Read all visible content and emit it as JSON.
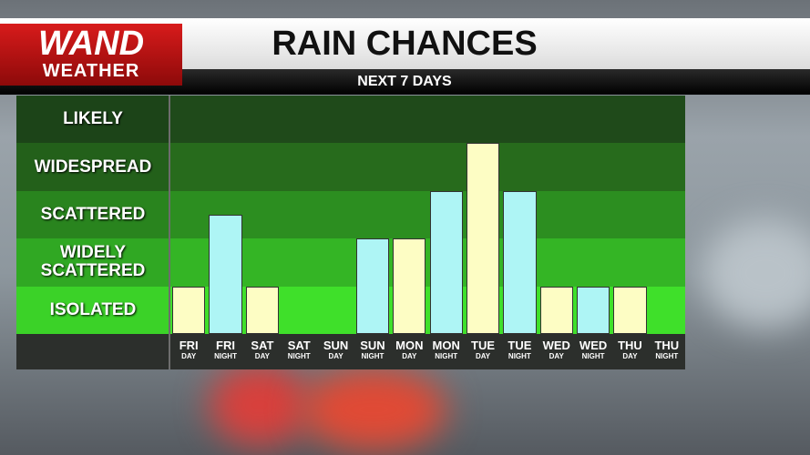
{
  "logo": {
    "name": "WAND",
    "sub": "WEATHER"
  },
  "chart_data": {
    "type": "bar",
    "title": "RAIN CHANCES",
    "subtitle": "NEXT 7 DAYS",
    "categories": [
      "FRI",
      "FRI",
      "SAT",
      "SAT",
      "SUN",
      "SUN",
      "MON",
      "MON",
      "TUE",
      "TUE",
      "WED",
      "WED",
      "THU",
      "THU"
    ],
    "subcategories": [
      "DAY",
      "NIGHT",
      "DAY",
      "NIGHT",
      "DAY",
      "NIGHT",
      "DAY",
      "NIGHT",
      "DAY",
      "NIGHT",
      "DAY",
      "NIGHT",
      "DAY",
      "NIGHT"
    ],
    "values": [
      1,
      2.5,
      1,
      0,
      0,
      2,
      2,
      3,
      4,
      3,
      1,
      1,
      1,
      0
    ],
    "colors": [
      "#fdfdc4",
      "#aef5f5",
      "#fdfdc4",
      "#aef5f5",
      "#fdfdc4",
      "#aef5f5",
      "#fdfdc4",
      "#aef5f5",
      "#fdfdc4",
      "#aef5f5",
      "#fdfdc4",
      "#aef5f5",
      "#fdfdc4",
      "#aef5f5"
    ],
    "ylim": [
      0,
      5
    ],
    "yticks": [
      {
        "value": 0.5,
        "label": "ISOLATED"
      },
      {
        "value": 1.5,
        "label": "WIDELY SCATTERED"
      },
      {
        "value": 2.5,
        "label": "SCATTERED"
      },
      {
        "value": 3.5,
        "label": "WIDESPREAD"
      },
      {
        "value": 4.5,
        "label": "LIKELY"
      }
    ]
  }
}
